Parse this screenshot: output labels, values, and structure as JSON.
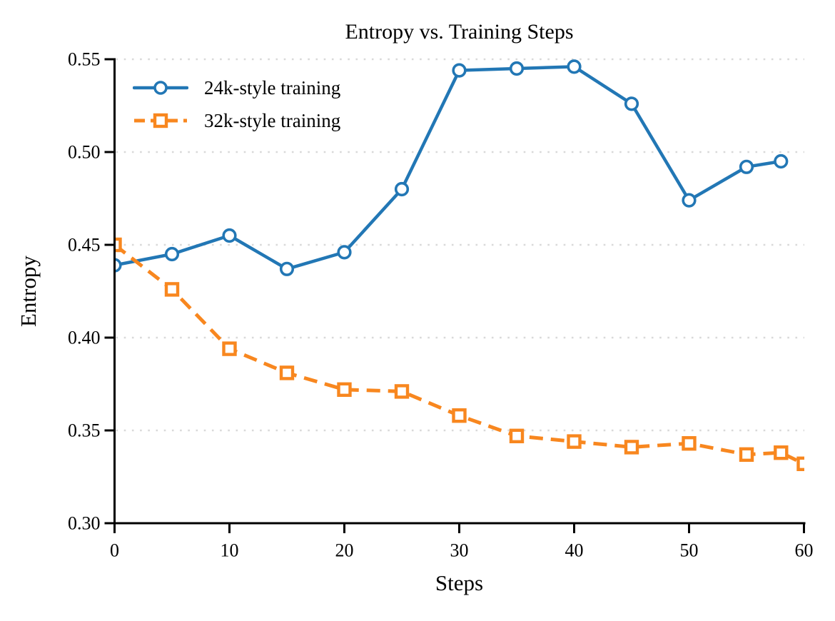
{
  "figure": {
    "background": "#ffffff"
  },
  "chart_data": {
    "type": "line",
    "title": "Entropy vs. Training Steps",
    "xlabel": "Steps",
    "ylabel": "Entropy",
    "xlim": [
      0,
      60
    ],
    "ylim": [
      0.3,
      0.55
    ],
    "grid": "horizontal dotted gridlines",
    "legend_position": "upper-left, no frame",
    "x_ticks": [
      0,
      10,
      20,
      30,
      40,
      50,
      60
    ],
    "x_tick_labels": [
      "0",
      "10",
      "20",
      "30",
      "40",
      "50",
      "60"
    ],
    "y_ticks": [
      0.3,
      0.35,
      0.4,
      0.45,
      0.5,
      0.55
    ],
    "y_tick_labels": [
      "0.30",
      "0.35",
      "0.40",
      "0.45",
      "0.50",
      "0.55"
    ],
    "series": [
      {
        "name": "24k-style training",
        "color": "#2277b5",
        "marker": "circle",
        "line_style": "solid",
        "x": [
          0,
          5,
          10,
          15,
          20,
          25,
          30,
          35,
          40,
          45,
          50,
          55,
          58
        ],
        "y": [
          0.439,
          0.445,
          0.455,
          0.437,
          0.446,
          0.48,
          0.544,
          0.545,
          0.546,
          0.526,
          0.474,
          0.492,
          0.495
        ]
      },
      {
        "name": "32k-style training",
        "color": "#f8871f",
        "marker": "square",
        "line_style": "dashed",
        "x": [
          0,
          5,
          10,
          15,
          20,
          25,
          30,
          35,
          40,
          45,
          50,
          55,
          58,
          60
        ],
        "y": [
          0.45,
          0.426,
          0.394,
          0.381,
          0.372,
          0.371,
          0.358,
          0.347,
          0.344,
          0.341,
          0.343,
          0.337,
          0.338,
          0.332
        ]
      }
    ],
    "colors": {
      "grid": "#d9d9d9",
      "axis": "#000000",
      "text": "#000000"
    }
  }
}
